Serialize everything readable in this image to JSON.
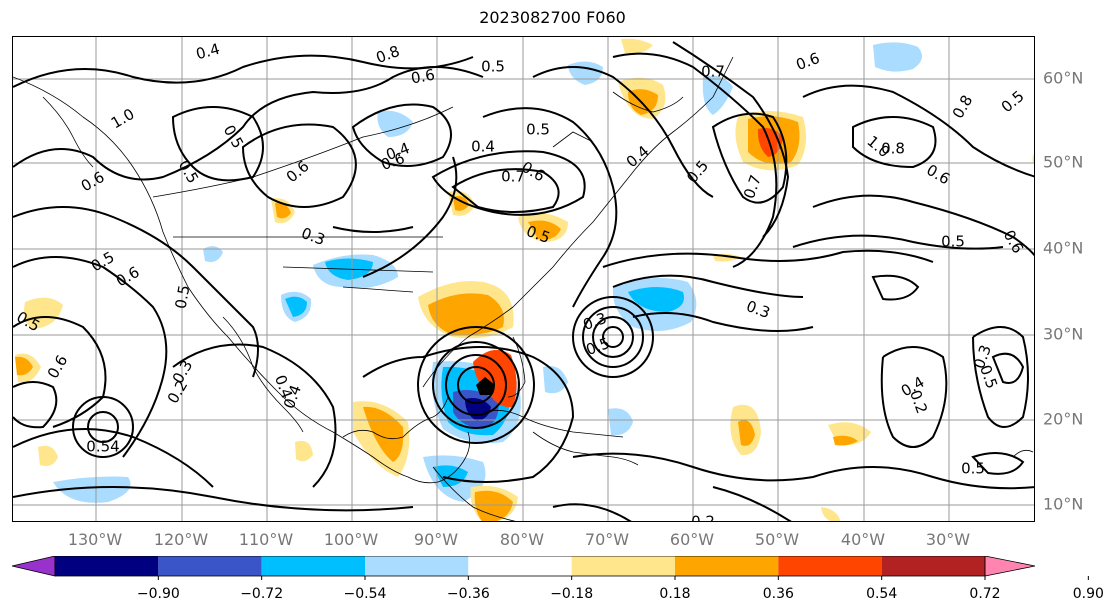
{
  "title": "2023082700 F060",
  "lon_labels": [
    "130°W",
    "120°W",
    "110°W",
    "100°W",
    "90°W",
    "80°W",
    "70°W",
    "60°W",
    "50°W",
    "40°W",
    "30°W"
  ],
  "lat_labels": [
    "60°N",
    "50°N",
    "40°N",
    "30°N",
    "20°N",
    "10°N"
  ],
  "colorbar": {
    "ticks": [
      "−0.90",
      "−0.72",
      "−0.54",
      "−0.36",
      "−0.18",
      "0.18",
      "0.36",
      "0.54",
      "0.72",
      "0.90"
    ],
    "colors": [
      "#9932cc",
      "#000080",
      "#3a55c8",
      "#00bfff",
      "#aadcff",
      "#ffffff",
      "#ffe68c",
      "#ffa500",
      "#ff4500",
      "#b22222",
      "#ff85b0"
    ]
  },
  "contour_labels": [
    "0.4",
    "0.8",
    "0.6",
    "0.5",
    "0.7",
    "0.6",
    "0.5",
    "0.8",
    "1.0",
    "0.5",
    "0.6",
    "0.5",
    "0.6",
    "0.4",
    "0.5",
    "0.6",
    "0.4",
    "0.3",
    "0.7",
    "0.6",
    "0.5",
    "0.4",
    "0.5",
    "0.7",
    "1.0",
    "0.8",
    "0.6",
    "0.5",
    "0.6",
    "0.5",
    "0.5",
    "0.6",
    "0.5",
    "0.3",
    "0.2",
    "0.3",
    "0.4",
    "0.6",
    "0.5",
    "0.4",
    "0.4",
    "0.2",
    "0.3",
    "0.5",
    "0.54",
    "0.2",
    "0.3",
    "0.5"
  ]
}
